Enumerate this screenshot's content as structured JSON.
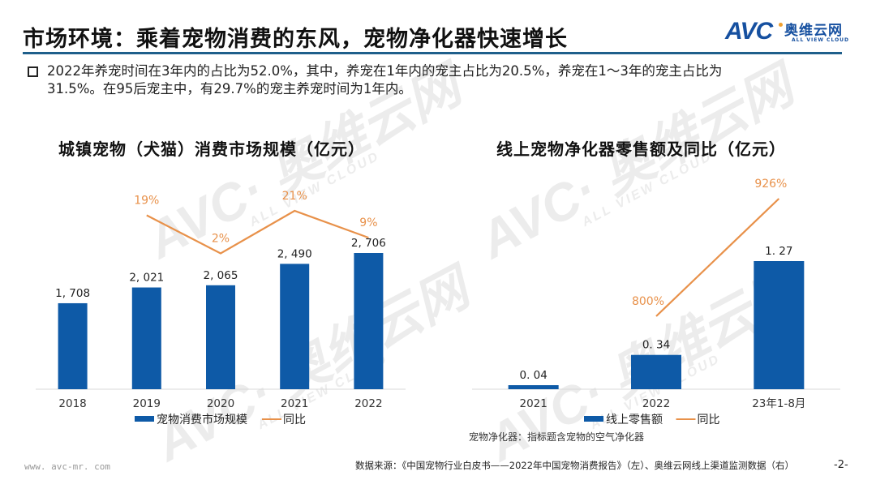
{
  "header": {
    "title": "市场环境：乘着宠物消费的东风，宠物净化器快速增长",
    "logo": {
      "mark": "AVC",
      "cn": "奥维云网",
      "en": "ALL VIEW CLOUD"
    }
  },
  "summary": {
    "line1": "2022年养宠时间在3年内的占比为52.0%，其中，养宠在1年内的宠主占比为20.5%，养宠在1～3年的宠主占比为",
    "line2": "31.5%。在95后宠主中，有29.7%的宠主养宠时间为1年内。"
  },
  "colors": {
    "bar": "#0e5aa7",
    "line": "#e8914a",
    "rule": "#1f5f8b"
  },
  "chart_data": [
    {
      "type": "bar",
      "title": "城镇宠物（犬猫）消费市场规模（亿元）",
      "categories": [
        "2018",
        "2019",
        "2020",
        "2021",
        "2022"
      ],
      "series": [
        {
          "name": "宠物消费市场规模",
          "kind": "bar",
          "values": [
            1708,
            2021,
            2065,
            2490,
            2706
          ],
          "labels": [
            "1, 708",
            "2, 021",
            "2, 065",
            "2, 490",
            "2, 706"
          ]
        },
        {
          "name": "同比",
          "kind": "line",
          "values": [
            null,
            19,
            2,
            21,
            9
          ],
          "labels": [
            "",
            "19%",
            "2%",
            "21%",
            "9%"
          ]
        }
      ],
      "xlabel": "",
      "ylabel": "",
      "grid": false,
      "legend": "bottom"
    },
    {
      "type": "bar",
      "title": "线上宠物净化器零售额及同比（亿元）",
      "categories": [
        "2021",
        "2022",
        "23年1-8月"
      ],
      "series": [
        {
          "name": "线上零售额",
          "kind": "bar",
          "values": [
            0.04,
            0.34,
            1.27
          ],
          "labels": [
            "0. 04",
            "0. 34",
            "1. 27"
          ]
        },
        {
          "name": "同比",
          "kind": "line",
          "values": [
            null,
            800,
            926
          ],
          "labels": [
            "",
            "800%",
            "926%"
          ]
        }
      ],
      "xlabel": "",
      "ylabel": "",
      "grid": false,
      "legend": "bottom"
    }
  ],
  "note": "宠物净化器：指标题含宠物的空气净化器",
  "footer": {
    "url": "www. avc-mr. com",
    "source": "数据来源：《中国宠物行业白皮书——2022年中国宠物消费报告》（左）、奥维云网线上渠道监测数据（右）",
    "page": "-2-"
  }
}
